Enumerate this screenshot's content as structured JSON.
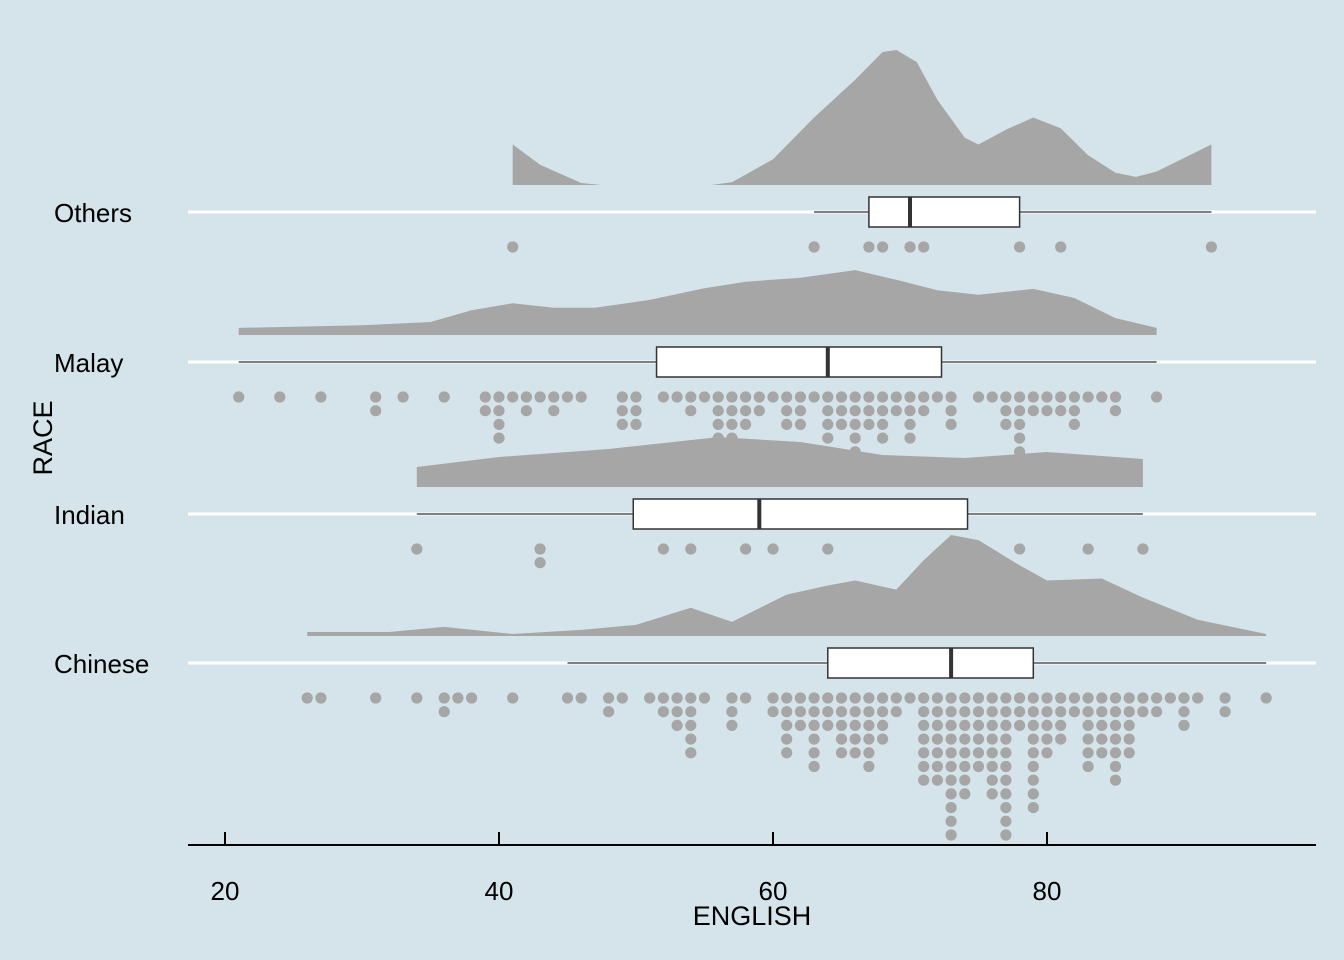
{
  "chart_data": {
    "type": "raincloud",
    "title": "",
    "xlabel": "ENGLISH",
    "ylabel": "RACE",
    "xlim": [
      17.3,
      98.5
    ],
    "x_ticks": [
      20,
      40,
      60,
      80
    ],
    "x_tick_labels": [
      "20",
      "40",
      "60",
      "80"
    ],
    "grid": "horizontal major lines at each category",
    "colors": {
      "background": "#d5e4eb",
      "cloud": "#a6a6a6",
      "dots": "#a6a6a6",
      "box_fill": "#ffffff",
      "box_line": "#333333",
      "grid": "#ffffff"
    },
    "categories": [
      "Others",
      "Malay",
      "Indian",
      "Chinese"
    ],
    "groups": [
      {
        "name": "Others",
        "box": {
          "min": 63,
          "q1": 67,
          "median": 70,
          "q3": 78,
          "max": 92
        },
        "density_segments": [
          [
            [
              41,
              0.3
            ],
            [
              43,
              0.15
            ],
            [
              46,
              0.015
            ],
            [
              47.5,
              0
            ]
          ],
          [
            [
              55.5,
              0
            ],
            [
              57,
              0.02
            ],
            [
              60,
              0.19
            ],
            [
              63,
              0.5
            ],
            [
              66,
              0.78
            ],
            [
              68,
              0.985
            ],
            [
              69,
              1.0
            ],
            [
              70.5,
              0.91
            ],
            [
              72,
              0.63
            ],
            [
              74,
              0.35
            ],
            [
              75,
              0.3
            ],
            [
              77,
              0.41
            ],
            [
              79,
              0.5
            ],
            [
              81,
              0.42
            ],
            [
              83,
              0.22
            ],
            [
              85,
              0.09
            ],
            [
              86.5,
              0.06
            ],
            [
              88,
              0.1
            ],
            [
              90,
              0.2
            ],
            [
              92,
              0.3
            ]
          ]
        ],
        "density_scale": 0.9,
        "dots": [
          [
            41,
            1
          ],
          [
            63,
            1
          ],
          [
            67,
            1
          ],
          [
            68,
            1
          ],
          [
            70,
            1
          ],
          [
            71,
            1
          ],
          [
            78,
            1
          ],
          [
            81,
            1
          ],
          [
            92,
            1
          ]
        ]
      },
      {
        "name": "Malay",
        "box": {
          "min": 21,
          "q1": 51.5,
          "median": 64,
          "q3": 72.3,
          "max": 88
        },
        "density_segments": [
          [
            [
              21,
              0.11
            ],
            [
              30,
              0.15
            ],
            [
              35,
              0.2
            ],
            [
              38,
              0.38
            ],
            [
              41,
              0.49
            ],
            [
              44,
              0.42
            ],
            [
              47,
              0.42
            ],
            [
              51,
              0.54
            ],
            [
              55,
              0.72
            ],
            [
              58,
              0.82
            ],
            [
              62,
              0.88
            ],
            [
              66,
              1.0
            ],
            [
              69,
              0.85
            ],
            [
              72,
              0.69
            ],
            [
              75,
              0.62
            ],
            [
              79,
              0.71
            ],
            [
              82,
              0.57
            ],
            [
              85,
              0.26
            ],
            [
              88,
              0.11
            ]
          ]
        ],
        "density_scale": 0.433,
        "dots": [
          [
            21,
            1
          ],
          [
            24,
            1
          ],
          [
            27,
            1
          ],
          [
            31,
            2
          ],
          [
            33,
            1
          ],
          [
            36,
            1
          ],
          [
            39,
            2
          ],
          [
            40,
            4
          ],
          [
            41,
            1
          ],
          [
            42,
            2
          ],
          [
            43,
            1
          ],
          [
            44,
            2
          ],
          [
            45,
            1
          ],
          [
            46,
            1
          ],
          [
            49,
            3
          ],
          [
            50,
            3
          ],
          [
            52,
            1
          ],
          [
            53,
            1
          ],
          [
            54,
            2
          ],
          [
            55,
            1
          ],
          [
            56,
            4
          ],
          [
            57,
            4
          ],
          [
            58,
            3
          ],
          [
            59,
            2
          ],
          [
            60,
            1
          ],
          [
            61,
            3
          ],
          [
            62,
            3
          ],
          [
            63,
            1
          ],
          [
            64,
            4
          ],
          [
            65,
            3
          ],
          [
            66,
            5
          ],
          [
            67,
            3
          ],
          [
            68,
            4
          ],
          [
            69,
            2
          ],
          [
            70,
            4
          ],
          [
            71,
            2
          ],
          [
            72,
            1
          ],
          [
            73,
            3
          ],
          [
            75,
            1
          ],
          [
            76,
            1
          ],
          [
            77,
            3
          ],
          [
            78,
            5
          ],
          [
            79,
            2
          ],
          [
            80,
            2
          ],
          [
            81,
            2
          ],
          [
            82,
            3
          ],
          [
            83,
            1
          ],
          [
            84,
            1
          ],
          [
            85,
            2
          ],
          [
            88,
            1
          ]
        ]
      },
      {
        "name": "Indian",
        "box": {
          "min": 34,
          "q1": 49.8,
          "median": 59,
          "q3": 74.2,
          "max": 87
        },
        "density_segments": [
          [
            [
              34,
              0.4
            ],
            [
              40,
              0.6
            ],
            [
              48,
              0.76
            ],
            [
              56,
              1.0
            ],
            [
              62,
              0.9
            ],
            [
              68,
              0.64
            ],
            [
              74,
              0.58
            ],
            [
              80,
              0.7
            ],
            [
              87,
              0.56
            ]
          ]
        ],
        "density_scale": 0.333,
        "dots": [
          [
            34,
            1
          ],
          [
            43,
            2
          ],
          [
            52,
            1
          ],
          [
            54,
            1
          ],
          [
            58,
            1
          ],
          [
            60,
            1
          ],
          [
            64,
            1
          ],
          [
            78,
            1
          ],
          [
            83,
            1
          ],
          [
            87,
            1
          ]
        ]
      },
      {
        "name": "Chinese",
        "box": {
          "min": 45,
          "q1": 64,
          "median": 73,
          "q3": 79,
          "max": 96
        },
        "density_segments": [
          [
            [
              26,
              0.04
            ],
            [
              32,
              0.04
            ],
            [
              36,
              0.09
            ],
            [
              41,
              0.02
            ],
            [
              46,
              0.06
            ],
            [
              50,
              0.11
            ],
            [
              54,
              0.28
            ],
            [
              57,
              0.14
            ],
            [
              61,
              0.41
            ],
            [
              64,
              0.5
            ],
            [
              66,
              0.55
            ],
            [
              69,
              0.46
            ],
            [
              71,
              0.75
            ],
            [
              73,
              1.0
            ],
            [
              75,
              0.95
            ],
            [
              78,
              0.7
            ],
            [
              80,
              0.55
            ],
            [
              84,
              0.57
            ],
            [
              87,
              0.38
            ],
            [
              91,
              0.16
            ],
            [
              96,
              0.02
            ]
          ]
        ],
        "density_scale": 0.673,
        "dots": [
          [
            26,
            1
          ],
          [
            27,
            1
          ],
          [
            31,
            1
          ],
          [
            34,
            1
          ],
          [
            36,
            2
          ],
          [
            37,
            1
          ],
          [
            38,
            1
          ],
          [
            41,
            1
          ],
          [
            45,
            1
          ],
          [
            46,
            1
          ],
          [
            48,
            2
          ],
          [
            49,
            1
          ],
          [
            51,
            1
          ],
          [
            52,
            2
          ],
          [
            53,
            3
          ],
          [
            54,
            5
          ],
          [
            55,
            1
          ],
          [
            57,
            3
          ],
          [
            58,
            1
          ],
          [
            60,
            2
          ],
          [
            61,
            5
          ],
          [
            62,
            3
          ],
          [
            63,
            6
          ],
          [
            64,
            3
          ],
          [
            65,
            5
          ],
          [
            66,
            5
          ],
          [
            67,
            6
          ],
          [
            68,
            4
          ],
          [
            69,
            2
          ],
          [
            70,
            1
          ],
          [
            71,
            7
          ],
          [
            72,
            7
          ],
          [
            73,
            11
          ],
          [
            74,
            8
          ],
          [
            75,
            6
          ],
          [
            76,
            8
          ],
          [
            77,
            11
          ],
          [
            78,
            3
          ],
          [
            79,
            9
          ],
          [
            80,
            5
          ],
          [
            81,
            4
          ],
          [
            82,
            2
          ],
          [
            83,
            6
          ],
          [
            84,
            5
          ],
          [
            85,
            7
          ],
          [
            86,
            5
          ],
          [
            87,
            2
          ],
          [
            88,
            2
          ],
          [
            89,
            1
          ],
          [
            90,
            3
          ],
          [
            91,
            1
          ],
          [
            93,
            2
          ],
          [
            96,
            1
          ]
        ]
      }
    ]
  }
}
